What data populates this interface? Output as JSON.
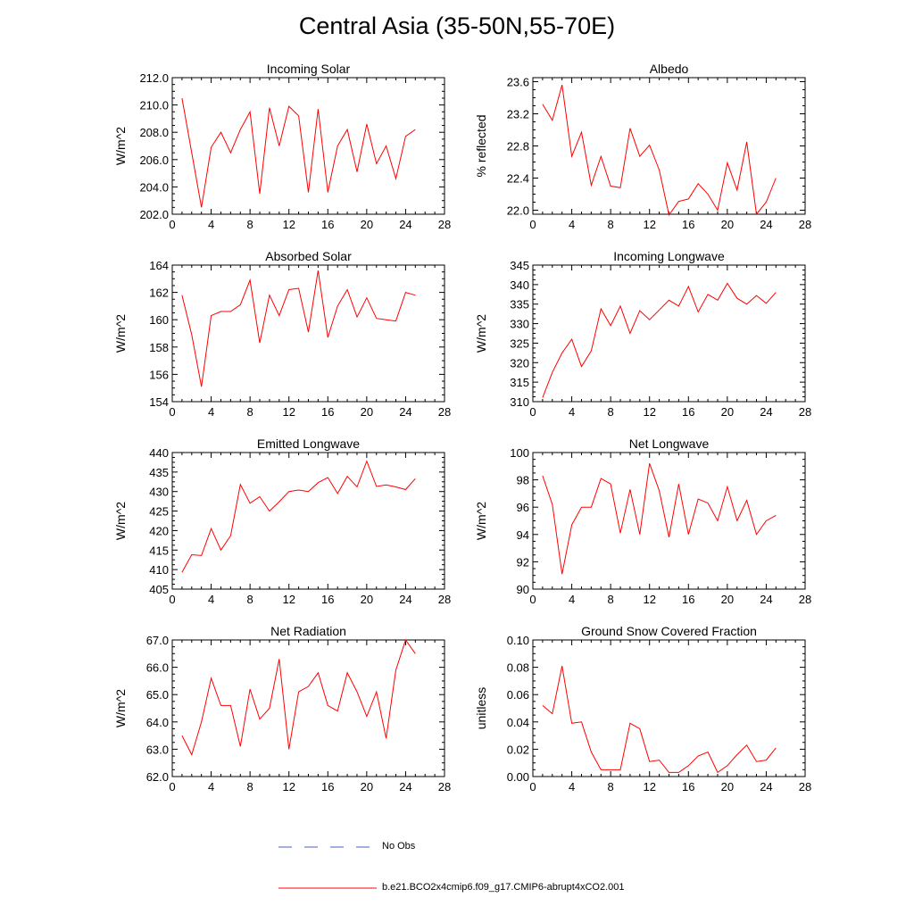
{
  "figure": {
    "title": "Central Asia (35-50N,55-70E)"
  },
  "legend": [
    {
      "label": "No Obs",
      "color": "#4a5fc1",
      "dash": true
    },
    {
      "label": "b.e21.BCO2x4cmip6.f09_g17.CMIP6-abrupt4xCO2.001",
      "color": "#ff0000",
      "dash": false
    }
  ],
  "chart_data": [
    {
      "type": "line",
      "title": "Incoming Solar",
      "ylabel": "W/m^2",
      "xlim": [
        0,
        28
      ],
      "xticks": [
        0,
        4,
        8,
        12,
        16,
        20,
        24,
        28
      ],
      "ylim": [
        202,
        212
      ],
      "yticks": [
        "202.0",
        "204.0",
        "206.0",
        "208.0",
        "210.0",
        "212.0"
      ],
      "series": [
        {
          "color": "#ff0000",
          "x": [
            1,
            2,
            3,
            4,
            5,
            6,
            7,
            8,
            9,
            10,
            11,
            12,
            13,
            14,
            15,
            16,
            17,
            18,
            19,
            20,
            21,
            22,
            23,
            24,
            25
          ],
          "y": [
            210.5,
            206.5,
            202.5,
            206.9,
            208.0,
            206.5,
            208.2,
            209.5,
            203.5,
            209.8,
            207.0,
            209.9,
            209.2,
            203.6,
            209.7,
            203.6,
            207.0,
            208.2,
            205.1,
            208.6,
            205.7,
            207.0,
            204.6,
            207.7,
            208.2
          ]
        }
      ]
    },
    {
      "type": "line",
      "title": "Albedo",
      "ylabel": "% reflected",
      "xlim": [
        0,
        28
      ],
      "xticks": [
        0,
        4,
        8,
        12,
        16,
        20,
        24,
        28
      ],
      "ylim": [
        21.95,
        23.65
      ],
      "yticks": [
        "22.0",
        "22.4",
        "22.8",
        "23.2",
        "23.6"
      ],
      "series": [
        {
          "color": "#ff0000",
          "x": [
            1,
            2,
            3,
            4,
            5,
            6,
            7,
            8,
            9,
            10,
            11,
            12,
            13,
            14,
            15,
            16,
            17,
            18,
            19,
            20,
            21,
            22,
            23,
            24,
            25
          ],
          "y": [
            23.32,
            23.12,
            23.56,
            22.67,
            22.97,
            22.31,
            22.67,
            22.3,
            22.28,
            23.02,
            22.67,
            22.81,
            22.5,
            21.94,
            22.11,
            22.14,
            22.33,
            22.2,
            22.0,
            22.59,
            22.25,
            22.85,
            21.95,
            22.1,
            22.4
          ]
        }
      ]
    },
    {
      "type": "line",
      "title": "Absorbed Solar",
      "ylabel": "W/m^2",
      "xlim": [
        0,
        28
      ],
      "xticks": [
        0,
        4,
        8,
        12,
        16,
        20,
        24,
        28
      ],
      "ylim": [
        154,
        164
      ],
      "yticks": [
        "154",
        "156",
        "158",
        "160",
        "162",
        "164"
      ],
      "series": [
        {
          "color": "#ff0000",
          "x": [
            1,
            2,
            3,
            4,
            5,
            6,
            7,
            8,
            9,
            10,
            11,
            12,
            13,
            14,
            15,
            16,
            17,
            18,
            19,
            20,
            21,
            22,
            23,
            24,
            25
          ],
          "y": [
            161.8,
            158.9,
            155.1,
            160.3,
            160.6,
            160.6,
            161.1,
            162.9,
            158.3,
            161.8,
            160.3,
            162.2,
            162.3,
            159.1,
            163.6,
            158.7,
            161.0,
            162.2,
            160.2,
            161.6,
            160.1,
            160.0,
            159.9,
            162.0,
            161.8
          ]
        }
      ]
    },
    {
      "type": "line",
      "title": "Incoming Longwave",
      "ylabel": "W/m^2",
      "xlim": [
        0,
        28
      ],
      "xticks": [
        0,
        4,
        8,
        12,
        16,
        20,
        24,
        28
      ],
      "ylim": [
        310,
        345
      ],
      "yticks": [
        "310",
        "315",
        "320",
        "325",
        "330",
        "335",
        "340",
        "345"
      ],
      "series": [
        {
          "color": "#ff0000",
          "x": [
            1,
            2,
            3,
            4,
            5,
            6,
            7,
            8,
            9,
            10,
            11,
            12,
            13,
            14,
            15,
            16,
            17,
            18,
            19,
            20,
            21,
            22,
            23,
            24,
            25
          ],
          "y": [
            311.0,
            317.5,
            322.5,
            326.0,
            319.0,
            323.0,
            333.8,
            329.5,
            334.5,
            327.5,
            333.3,
            331.0,
            333.5,
            336.0,
            334.5,
            339.5,
            333.0,
            337.5,
            336.0,
            340.3,
            336.5,
            335.0,
            337.2,
            335.2,
            338.0
          ]
        }
      ]
    },
    {
      "type": "line",
      "title": "Emitted Longwave",
      "ylabel": "W/m^2",
      "xlim": [
        0,
        28
      ],
      "xticks": [
        0,
        4,
        8,
        12,
        16,
        20,
        24,
        28
      ],
      "ylim": [
        405,
        440
      ],
      "yticks": [
        "405",
        "410",
        "415",
        "420",
        "425",
        "430",
        "435",
        "440"
      ],
      "series": [
        {
          "color": "#ff0000",
          "x": [
            1,
            2,
            3,
            4,
            5,
            6,
            7,
            8,
            9,
            10,
            11,
            12,
            13,
            14,
            15,
            16,
            17,
            18,
            19,
            20,
            21,
            22,
            23,
            24,
            25
          ],
          "y": [
            409.3,
            413.8,
            413.6,
            420.5,
            415.0,
            418.7,
            431.8,
            427.0,
            428.7,
            425.0,
            427.4,
            430.0,
            430.4,
            430.0,
            432.3,
            433.6,
            429.5,
            433.9,
            431.2,
            437.8,
            431.3,
            431.7,
            431.2,
            430.5,
            433.3
          ]
        }
      ]
    },
    {
      "type": "line",
      "title": "Net Longwave",
      "ylabel": "W/m^2",
      "xlim": [
        0,
        28
      ],
      "xticks": [
        0,
        4,
        8,
        12,
        16,
        20,
        24,
        28
      ],
      "ylim": [
        90,
        100
      ],
      "yticks": [
        "90",
        "92",
        "94",
        "96",
        "98",
        "100"
      ],
      "series": [
        {
          "color": "#ff0000",
          "x": [
            1,
            2,
            3,
            4,
            5,
            6,
            7,
            8,
            9,
            10,
            11,
            12,
            13,
            14,
            15,
            16,
            17,
            18,
            19,
            20,
            21,
            22,
            23,
            24,
            25
          ],
          "y": [
            98.3,
            96.2,
            91.1,
            94.7,
            96.0,
            96.0,
            98.1,
            97.7,
            94.1,
            97.3,
            94.0,
            99.2,
            97.2,
            93.8,
            97.7,
            94.0,
            96.6,
            96.3,
            95.0,
            97.5,
            95.0,
            96.5,
            94.0,
            95.0,
            95.4
          ]
        }
      ]
    },
    {
      "type": "line",
      "title": "Net Radiation",
      "ylabel": "W/m^2",
      "xlim": [
        0,
        28
      ],
      "xticks": [
        0,
        4,
        8,
        12,
        16,
        20,
        24,
        28
      ],
      "ylim": [
        62,
        67
      ],
      "yticks": [
        "62.0",
        "63.0",
        "64.0",
        "65.0",
        "66.0",
        "67.0"
      ],
      "series": [
        {
          "color": "#ff0000",
          "x": [
            1,
            2,
            3,
            4,
            5,
            6,
            7,
            8,
            9,
            10,
            11,
            12,
            13,
            14,
            15,
            16,
            17,
            18,
            19,
            20,
            21,
            22,
            23,
            24,
            25
          ],
          "y": [
            63.5,
            62.8,
            64.0,
            65.6,
            64.6,
            64.6,
            63.1,
            65.2,
            64.1,
            64.5,
            66.3,
            63.0,
            65.1,
            65.3,
            65.8,
            64.6,
            64.4,
            65.8,
            65.1,
            64.2,
            65.1,
            63.4,
            65.9,
            67.0,
            66.5
          ]
        }
      ]
    },
    {
      "type": "line",
      "title": "Ground Snow Covered Fraction",
      "ylabel": "unitless",
      "xlim": [
        0,
        28
      ],
      "xticks": [
        0,
        4,
        8,
        12,
        16,
        20,
        24,
        28
      ],
      "ylim": [
        0,
        0.1
      ],
      "yticks": [
        "0.00",
        "0.02",
        "0.04",
        "0.06",
        "0.08",
        "0.10"
      ],
      "series": [
        {
          "color": "#ff0000",
          "x": [
            1,
            2,
            3,
            4,
            5,
            6,
            7,
            8,
            9,
            10,
            11,
            12,
            13,
            14,
            15,
            16,
            17,
            18,
            19,
            20,
            21,
            22,
            23,
            24,
            25
          ],
          "y": [
            0.052,
            0.046,
            0.081,
            0.039,
            0.04,
            0.018,
            0.005,
            0.005,
            0.005,
            0.039,
            0.035,
            0.011,
            0.012,
            0.003,
            0.003,
            0.008,
            0.015,
            0.018,
            0.003,
            0.008,
            0.016,
            0.023,
            0.011,
            0.012,
            0.021
          ]
        }
      ]
    }
  ]
}
